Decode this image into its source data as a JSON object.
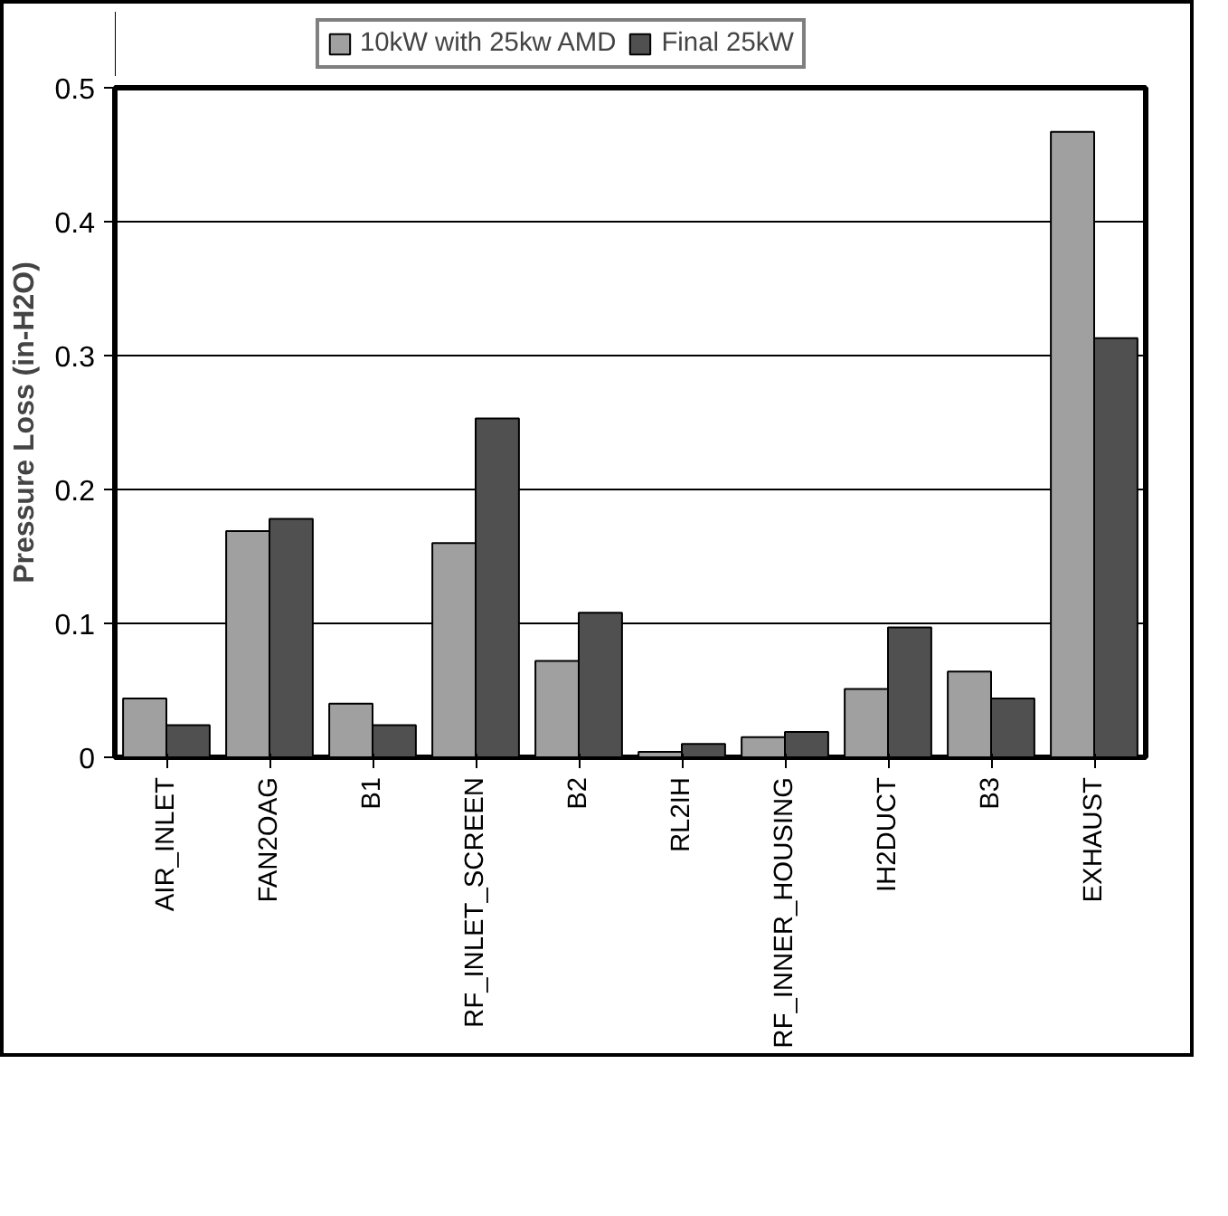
{
  "chart_data": {
    "type": "bar",
    "ylabel": "Pressure Loss (in-H2O)",
    "categories": [
      "AIR_INLET",
      "FAN2OAG",
      "B1",
      "RF_INLET_SCREEN",
      "B2",
      "RL2IH",
      "RF_INNER_HOUSING",
      "IH2DUCT",
      "B3",
      "EXHAUST"
    ],
    "series": [
      {
        "name": "10kW with 25kw AMD",
        "color": "#a0a0a0",
        "values": [
          0.044,
          0.169,
          0.04,
          0.16,
          0.072,
          0.004,
          0.015,
          0.051,
          0.064,
          0.467
        ]
      },
      {
        "name": "Final 25kW",
        "color": "#505050",
        "values": [
          0.024,
          0.178,
          0.024,
          0.253,
          0.108,
          0.01,
          0.019,
          0.097,
          0.044,
          0.313
        ]
      }
    ],
    "ylim": [
      0,
      0.5
    ],
    "yticks": [
      0,
      0.1,
      0.2,
      0.3,
      0.4,
      0.5
    ],
    "grid": "y",
    "legend": "top"
  }
}
